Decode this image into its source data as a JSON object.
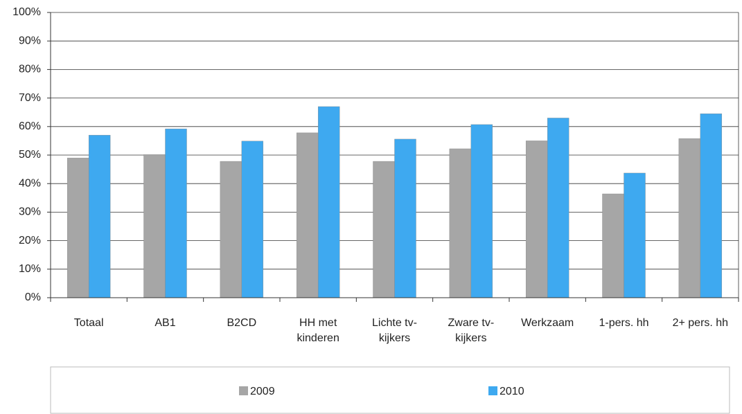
{
  "chart_data": {
    "type": "bar",
    "categories": [
      "Totaal",
      "AB1",
      "B2CD",
      "HH met kinderen",
      "Lichte tv-kijkers",
      "Zware tv-kijkers",
      "Werkzaam",
      "1-pers. hh",
      "2+ pers. hh"
    ],
    "series": [
      {
        "name": "2009",
        "color": "#a6a6a6",
        "values": [
          49,
          50.2,
          47.8,
          57.8,
          47.8,
          52.2,
          55,
          36.4,
          55.8
        ]
      },
      {
        "name": "2010",
        "color": "#3ea9f0",
        "values": [
          57,
          59.2,
          54.9,
          67,
          55.6,
          60.7,
          63,
          43.7,
          64.5
        ]
      }
    ],
    "ylim": [
      0,
      100
    ],
    "yticks": [
      {
        "value": 0,
        "label": "0%"
      },
      {
        "value": 10,
        "label": "10%"
      },
      {
        "value": 20,
        "label": "20%"
      },
      {
        "value": 30,
        "label": "30%"
      },
      {
        "value": 40,
        "label": "40%"
      },
      {
        "value": 50,
        "label": "50%"
      },
      {
        "value": 60,
        "label": "60%"
      },
      {
        "value": 70,
        "label": "70%"
      },
      {
        "value": 80,
        "label": "80%"
      },
      {
        "value": 90,
        "label": "90%"
      },
      {
        "value": 100,
        "label": "100%"
      }
    ],
    "grid": true,
    "legend": "bottom"
  }
}
